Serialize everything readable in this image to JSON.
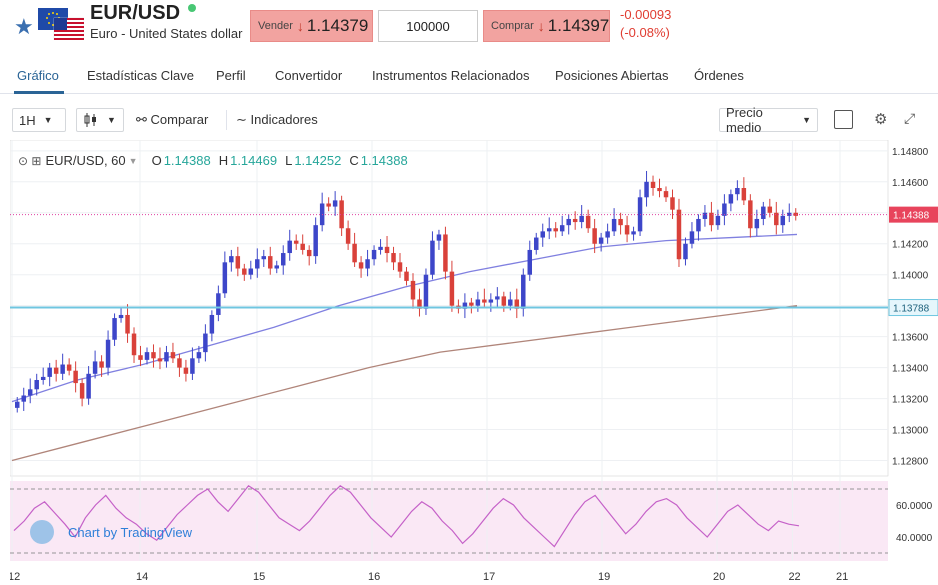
{
  "header": {
    "symbol": "EUR/USD",
    "description": "Euro - United States dollar",
    "sell_label": "Vender",
    "sell_arrow": "↓",
    "sell_price": "1.14379",
    "amount": "100000",
    "buy_label": "Comprar",
    "buy_arrow": "↓",
    "buy_price": "1.14397",
    "change_abs": "-0.00093",
    "change_pct": "(-0.08%)"
  },
  "tabs": [
    {
      "label": "Gráfico"
    },
    {
      "label": "Estadísticas Clave"
    },
    {
      "label": "Perfil"
    },
    {
      "label": "Convertidor"
    },
    {
      "label": "Instrumentos Relacionados"
    },
    {
      "label": "Posiciones Abiertas"
    },
    {
      "label": "Órdenes"
    }
  ],
  "toolbar": {
    "interval": "1H",
    "compare": "Comparar",
    "indicators": "Indicadores",
    "price_mode": "Precio medio"
  },
  "legend": {
    "title": "EUR/USD, 60",
    "o_label": "O",
    "o_value": "1.14388",
    "h_label": "H",
    "h_value": "1.14469",
    "l_label": "L",
    "l_value": "1.14252",
    "c_label": "C",
    "c_value": "1.14388"
  },
  "watermark": "Chart by TradingView",
  "colors": {
    "up": "#3d46c9",
    "down": "#d9413a",
    "ma_fast": "#8080e0",
    "ma_slow": "#b0857a",
    "rsi": "#c561c8",
    "hline": "#6fc6e0"
  },
  "chart_data": {
    "type": "candlestick",
    "ylim": [
      1.127,
      1.1487
    ],
    "y_ticks": [
      "1.14800",
      "1.14600",
      "1.14400",
      "1.14200",
      "1.14000",
      "1.13800",
      "1.13600",
      "1.13400",
      "1.13200",
      "1.13000",
      "1.12800"
    ],
    "x_ticks": [
      "12",
      "14",
      "15",
      "16",
      "17",
      "19",
      "20",
      "21",
      "22"
    ],
    "current_price": "1.14388",
    "horizontal_level": "1.13788",
    "rsi_ticks": [
      "60.0000",
      "40.0000"
    ],
    "candles_close": [
      1.1318,
      1.1322,
      1.1326,
      1.1332,
      1.1334,
      1.134,
      1.1336,
      1.1342,
      1.1338,
      1.133,
      1.132,
      1.1336,
      1.1344,
      1.134,
      1.1358,
      1.1372,
      1.1374,
      1.1362,
      1.1348,
      1.1345,
      1.135,
      1.1346,
      1.1344,
      1.135,
      1.1346,
      1.134,
      1.1336,
      1.1346,
      1.135,
      1.1362,
      1.1374,
      1.1388,
      1.1408,
      1.1412,
      1.1404,
      1.14,
      1.1404,
      1.141,
      1.1412,
      1.1404,
      1.1406,
      1.1414,
      1.1422,
      1.142,
      1.1416,
      1.1412,
      1.1432,
      1.1446,
      1.1444,
      1.1448,
      1.143,
      1.142,
      1.1408,
      1.1404,
      1.141,
      1.1416,
      1.1418,
      1.1414,
      1.1408,
      1.1402,
      1.1396,
      1.1384,
      1.1378,
      1.14,
      1.1422,
      1.1426,
      1.1402,
      1.138,
      1.1378,
      1.1382,
      1.138,
      1.1384,
      1.1382,
      1.1384,
      1.1386,
      1.138,
      1.1384,
      1.1378,
      1.14,
      1.1416,
      1.1424,
      1.1428,
      1.143,
      1.1428,
      1.1432,
      1.1436,
      1.1434,
      1.1438,
      1.143,
      1.142,
      1.1424,
      1.1428,
      1.1436,
      1.1432,
      1.1426,
      1.1428,
      1.145,
      1.146,
      1.1456,
      1.1454,
      1.145,
      1.1442,
      1.141,
      1.142,
      1.1428,
      1.1436,
      1.144,
      1.1432,
      1.1438,
      1.1446,
      1.1452,
      1.1456,
      1.1448,
      1.143,
      1.1436,
      1.1444,
      1.144,
      1.1432,
      1.1438,
      1.144,
      1.1438
    ],
    "ma_fast": [
      1.1318,
      1.1332,
      1.1342,
      1.1354,
      1.1366,
      1.138,
      1.1392,
      1.1402,
      1.141,
      1.1418,
      1.1422,
      1.1424,
      1.1426
    ],
    "ma_slow": [
      1.128,
      1.1292,
      1.1304,
      1.1316,
      1.1328,
      1.134,
      1.135,
      1.1356,
      1.1362,
      1.1368,
      1.1374,
      1.138
    ],
    "rsi": [
      44,
      50,
      58,
      62,
      55,
      48,
      40,
      52,
      60,
      66,
      58,
      52,
      48,
      42,
      38,
      46,
      54,
      60,
      66,
      70,
      62,
      56,
      64,
      72,
      68,
      60,
      52,
      48,
      44,
      50,
      58,
      66,
      72,
      68,
      60,
      52,
      46,
      40,
      48,
      56,
      62,
      58,
      50,
      44,
      36,
      42,
      50,
      58,
      64,
      60,
      52,
      46,
      40,
      34,
      44,
      54,
      62,
      66,
      58,
      50,
      42,
      48,
      56,
      62,
      64,
      60,
      52,
      46,
      40,
      48,
      56,
      60,
      54,
      48,
      44,
      50,
      48,
      47
    ]
  }
}
